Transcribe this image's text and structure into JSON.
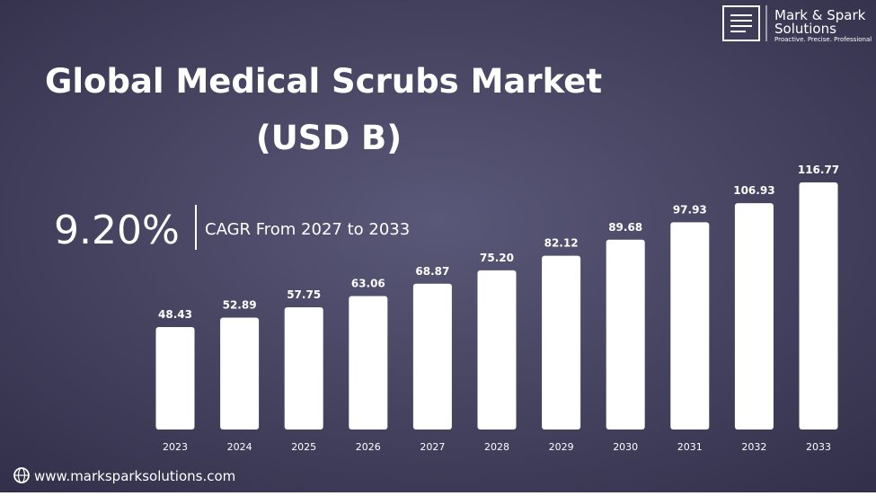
{
  "chart_data": {
    "type": "bar",
    "title": "Global Medical Scrubs Market",
    "subtitle": "(USD B)",
    "cagr": "9.20%",
    "cagr_text": "CAGR From  2027 to 2033",
    "categories": [
      "2023",
      "2024",
      "2025",
      "2026",
      "2027",
      "2028",
      "2029",
      "2030",
      "2031",
      "2032",
      "2033"
    ],
    "values": [
      48.43,
      52.89,
      57.75,
      63.06,
      68.87,
      75.2,
      82.12,
      89.68,
      97.93,
      106.93,
      116.77
    ],
    "value_labels": [
      "48.43",
      "52.89",
      "57.75",
      "63.06",
      "68.87",
      "75.20",
      "82.12",
      "89.68",
      "97.93",
      "106.93",
      "116.77"
    ],
    "color": "#ffffff"
  },
  "brand": {
    "name_line1": "Mark & Spark",
    "name_line2": "Solutions",
    "tagline": "Proactive. Precise. Professional",
    "website": "www.marksparksolutions.com"
  }
}
